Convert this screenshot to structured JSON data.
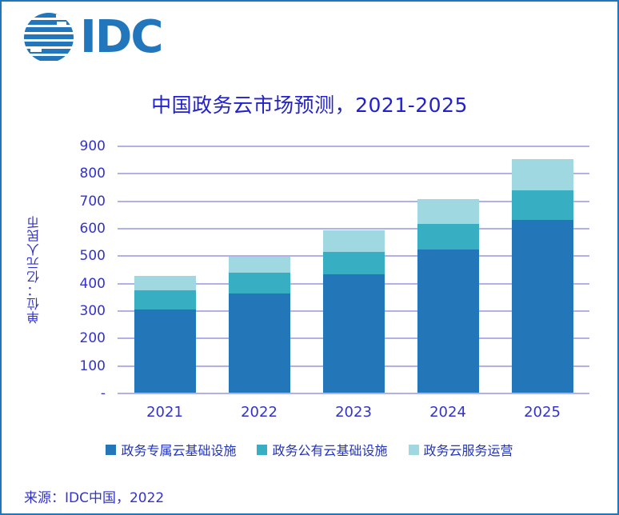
{
  "logo": {
    "text": "IDC",
    "color": "#2176BC"
  },
  "source": "来源：IDC中国，2022",
  "colors": {
    "border": "#2176BC",
    "gridline": "#B1B0E8",
    "tick_text": "#3333CC",
    "title_text": "#2222CC",
    "legend_text": "#2233BB"
  },
  "chart_data": {
    "type": "bar",
    "stacked": true,
    "title": "中国政务云市场预测，2021-2025",
    "ylabel": "单位：亿元人民币",
    "xlabel": "",
    "ylim": [
      0,
      900
    ],
    "yticks": [
      "900",
      "800",
      "700",
      "600",
      "500",
      "400",
      "300",
      "200",
      "100",
      "-"
    ],
    "grid": true,
    "legend_position": "bottom",
    "categories": [
      "2021",
      "2022",
      "2023",
      "2024",
      "2025"
    ],
    "series": [
      {
        "name": "政务专属云基础设施",
        "color": "#2377B8",
        "values": [
          305,
          363,
          435,
          524,
          631
        ]
      },
      {
        "name": "政务公有云基础设施",
        "color": "#38AEC2",
        "values": [
          70,
          76,
          82,
          94,
          110
        ]
      },
      {
        "name": "政务云服务运营",
        "color": "#A0D8E2",
        "values": [
          52,
          60,
          77,
          91,
          112
        ]
      }
    ]
  }
}
